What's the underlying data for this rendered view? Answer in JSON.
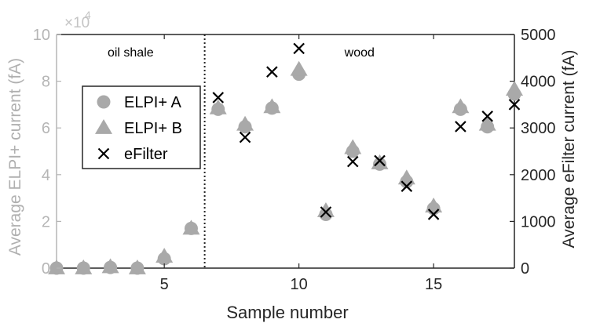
{
  "chart_data": {
    "type": "scatter",
    "title": "",
    "xlabel": "Sample number",
    "ylabel_left": "Average ELPI+ current (fA)",
    "ylabel_right": "Average eFilter current (fA)",
    "left_exponent_label": "×10",
    "left_exponent_power": "4",
    "xlim": [
      1,
      18
    ],
    "ylim_left": [
      0,
      100000
    ],
    "ylim_right": [
      0,
      5000
    ],
    "x_ticks": [
      5,
      10,
      15
    ],
    "x_tick_labels": [
      "5",
      "10",
      "15"
    ],
    "y_left_ticks": [
      0,
      20000,
      40000,
      60000,
      80000,
      100000
    ],
    "y_left_tick_labels": [
      "0",
      "2",
      "4",
      "6",
      "8",
      "10"
    ],
    "y_right_ticks": [
      0,
      1000,
      2000,
      3000,
      4000,
      5000
    ],
    "y_right_tick_labels": [
      "0",
      "1000",
      "2000",
      "3000",
      "4000",
      "5000"
    ],
    "separator_x": 6.5,
    "region_labels": [
      {
        "text": "oil shale",
        "x": 3.75
      },
      {
        "text": "wood",
        "x": 12.25
      }
    ],
    "legend_position": "center-left",
    "series": [
      {
        "name": "ELPI+ A",
        "marker": "circle",
        "color": "#a9a9a9",
        "axis": "left",
        "x": [
          1,
          2,
          3,
          4,
          5,
          6,
          7,
          8,
          9,
          10,
          11,
          12,
          13,
          14,
          15,
          16,
          17,
          18
        ],
        "y": [
          0,
          0,
          300,
          0,
          4000,
          17000,
          68000,
          60500,
          68500,
          83000,
          23000,
          50000,
          44500,
          37000,
          25500,
          68000,
          60500,
          74500
        ]
      },
      {
        "name": "ELPI+ B",
        "marker": "triangle",
        "color": "#a9a9a9",
        "axis": "left",
        "x": [
          1,
          2,
          3,
          4,
          5,
          6,
          7,
          8,
          9,
          10,
          11,
          12,
          13,
          14,
          15,
          16,
          17,
          18
        ],
        "y": [
          0,
          0,
          500,
          0,
          5000,
          17000,
          68500,
          61500,
          69000,
          85000,
          24500,
          51500,
          45000,
          38500,
          26500,
          69000,
          61500,
          76500
        ]
      },
      {
        "name": "eFilter",
        "marker": "x",
        "color": "#000000",
        "axis": "right",
        "x": [
          7,
          8,
          9,
          10,
          11,
          12,
          13,
          14,
          15,
          16,
          17,
          18
        ],
        "y": [
          3650,
          2800,
          4200,
          4700,
          1200,
          2280,
          2300,
          1750,
          1150,
          3030,
          3250,
          3500
        ]
      }
    ]
  }
}
